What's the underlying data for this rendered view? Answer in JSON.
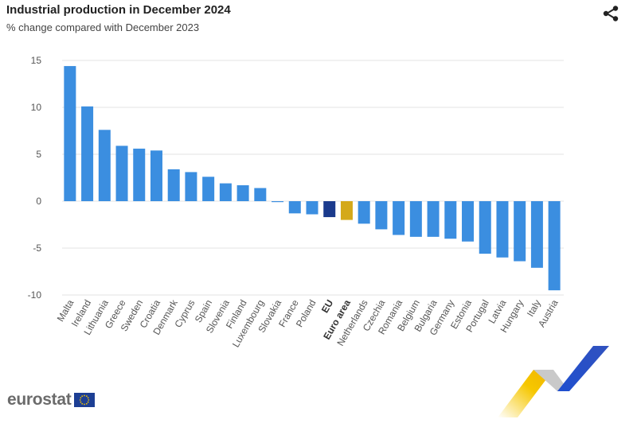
{
  "header": {
    "title": "Industrial production in December 2024",
    "subtitle": "% change compared with December 2023",
    "share_icon": "share-icon"
  },
  "footer": {
    "logo_text": "eurostat",
    "flag_icon": "eu-flag-icon"
  },
  "colors": {
    "default_bar": "#3b8ee0",
    "eu_bar": "#1a3a8c",
    "euro_area_bar": "#d4a91a",
    "grid": "#e3e3e3",
    "text": "#555555"
  },
  "chart_data": {
    "type": "bar",
    "title": "Industrial production in December 2024",
    "subtitle": "% change compared with December 2023",
    "xlabel": "",
    "ylabel": "",
    "ylim": [
      -10,
      15
    ],
    "yticks": [
      15,
      10,
      5,
      0,
      -5,
      -10
    ],
    "grid": true,
    "categories": [
      "Malta",
      "Ireland",
      "Lithuania",
      "Greece",
      "Sweden",
      "Croatia",
      "Denmark",
      "Cyprus",
      "Spain",
      "Slovenia",
      "Finland",
      "Luxembourg",
      "Slovakia",
      "France",
      "Poland",
      "EU",
      "Euro area",
      "Netherlands",
      "Czechia",
      "Romania",
      "Belgium",
      "Bulgaria",
      "Germany",
      "Estonia",
      "Portugal",
      "Latvia",
      "Hungary",
      "Italy",
      "Austria"
    ],
    "values": [
      14.4,
      10.1,
      7.6,
      5.9,
      5.6,
      5.4,
      3.4,
      3.1,
      2.6,
      1.9,
      1.7,
      1.4,
      -0.1,
      -1.3,
      -1.4,
      -1.7,
      -2.0,
      -2.4,
      -3.0,
      -3.6,
      -3.8,
      -3.8,
      -4.0,
      -4.3,
      -5.6,
      -6.0,
      -6.4,
      -7.1,
      -9.5
    ],
    "highlight": {
      "EU": "eu",
      "Euro area": "euro_area"
    },
    "bold_labels": [
      "EU",
      "Euro area"
    ]
  }
}
